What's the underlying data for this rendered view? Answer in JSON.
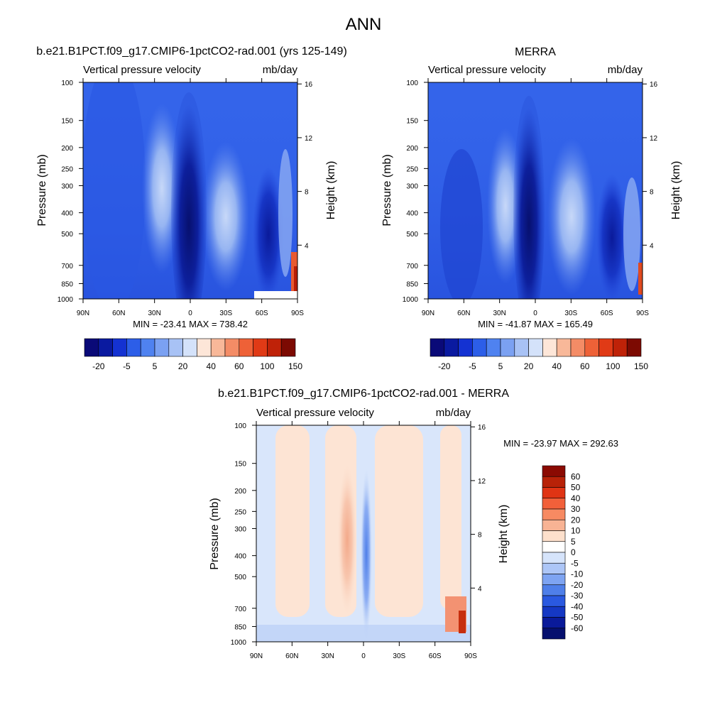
{
  "title": "ANN",
  "chart_data": [
    {
      "type": "heatmap",
      "title": "b.e21.B1PCT.f09_g17.CMIP6-1pctCO2-rad.001 (yrs 125-149)",
      "left_label": "Vertical pressure velocity",
      "right_label": "mb/day",
      "xlabel": "",
      "ylabel": "Pressure (mb)",
      "y2label": "Height (km)",
      "x_ticks": [
        "90N",
        "60N",
        "30N",
        "0",
        "30S",
        "60S",
        "90S"
      ],
      "y_ticks": [
        100,
        150,
        200,
        250,
        300,
        400,
        500,
        700,
        850,
        1000
      ],
      "y_log": true,
      "y_reversed": true,
      "ylim": [
        100,
        1000
      ],
      "y2_ticks": [
        16,
        12,
        8,
        4
      ],
      "stats": "MIN = -23.41  MAX = 738.42",
      "colorbar_labels": [
        "-20",
        "-5",
        "5",
        "20",
        "40",
        "60",
        "100",
        "150"
      ],
      "colorbar_colors": [
        "#0a0a78",
        "#0a1aa0",
        "#1432d2",
        "#2c5ee8",
        "#4f82f0",
        "#7ba1f2",
        "#a8c2f5",
        "#d4e2fa",
        "#fde6d8",
        "#f8b899",
        "#f48c66",
        "#ee6137",
        "#e03a16",
        "#bf2208",
        "#7c0a02"
      ],
      "fields": [
        {
          "lat_range": [
            -90,
            90
          ],
          "p_range": [
            100,
            1000
          ],
          "level": 4,
          "value": "-5 to 5"
        },
        {
          "lat_range": [
            -10,
            10
          ],
          "p_range": [
            150,
            1000
          ],
          "level": 1,
          "value": "-20 to -15"
        },
        {
          "lat_range": [
            -7,
            5
          ],
          "p_range": [
            400,
            1000
          ],
          "level": 0,
          "value": "< -20"
        },
        {
          "lat_range": [
            15,
            40
          ],
          "p_range": [
            150,
            900
          ],
          "level": 6,
          "value": "10 to 20"
        },
        {
          "lat_range": [
            -45,
            -20
          ],
          "p_range": [
            240,
            900
          ],
          "level": 6,
          "value": "10 to 20"
        },
        {
          "lat_range": [
            -75,
            -58
          ],
          "p_range": [
            300,
            1000
          ],
          "level": 1,
          "value": "-20 to -15"
        },
        {
          "lat_range": [
            -90,
            -80
          ],
          "p_range": [
            650,
            1000
          ],
          "level": 12,
          "value": "> 100"
        }
      ]
    },
    {
      "type": "heatmap",
      "title": "MERRA",
      "left_label": "Vertical pressure velocity",
      "right_label": "mb/day",
      "xlabel": "",
      "ylabel": "Pressure (mb)",
      "y2label": "Height (km)",
      "x_ticks": [
        "90N",
        "60N",
        "30N",
        "0",
        "30S",
        "60S",
        "90S"
      ],
      "y_ticks": [
        100,
        150,
        200,
        250,
        300,
        400,
        500,
        700,
        850,
        1000
      ],
      "y_log": true,
      "y_reversed": true,
      "ylim": [
        100,
        1000
      ],
      "y2_ticks": [
        16,
        12,
        8,
        4
      ],
      "stats": "MIN = -41.87  MAX = 165.49",
      "colorbar_labels": [
        "-20",
        "-5",
        "5",
        "20",
        "40",
        "60",
        "100",
        "150"
      ],
      "colorbar_colors": [
        "#0a0a78",
        "#0a1aa0",
        "#1432d2",
        "#2c5ee8",
        "#4f82f0",
        "#7ba1f2",
        "#a8c2f5",
        "#d4e2fa",
        "#fde6d8",
        "#f8b899",
        "#f48c66",
        "#ee6137",
        "#e03a16",
        "#bf2208",
        "#7c0a02"
      ],
      "fields": [
        {
          "lat_range": [
            -90,
            90
          ],
          "p_range": [
            100,
            1000
          ],
          "level": 4,
          "value": "-5 to 5"
        },
        {
          "lat_range": [
            -8,
            12
          ],
          "p_range": [
            150,
            1000
          ],
          "level": 1,
          "value": "-20 to -15"
        },
        {
          "lat_range": [
            -2,
            8
          ],
          "p_range": [
            500,
            1000
          ],
          "level": 0,
          "value": "< -20"
        },
        {
          "lat_range": [
            15,
            40
          ],
          "p_range": [
            200,
            900
          ],
          "level": 6,
          "value": "10 to 20"
        },
        {
          "lat_range": [
            -45,
            -20
          ],
          "p_range": [
            240,
            900
          ],
          "level": 6,
          "value": "10 to 20"
        },
        {
          "lat_range": [
            -75,
            -58
          ],
          "p_range": [
            300,
            1000
          ],
          "level": 1,
          "value": "-20 to -15"
        },
        {
          "lat_range": [
            -90,
            -80
          ],
          "p_range": [
            650,
            1000
          ],
          "level": 11,
          "value": "60 to 100"
        }
      ]
    },
    {
      "type": "heatmap",
      "title": "b.e21.B1PCT.f09_g17.CMIP6-1pctCO2-rad.001 - MERRA",
      "left_label": "Vertical pressure velocity",
      "right_label": "mb/day",
      "xlabel": "",
      "ylabel": "Pressure (mb)",
      "y2label": "Height (km)",
      "x_ticks": [
        "90N",
        "60N",
        "30N",
        "0",
        "30S",
        "60S",
        "90S"
      ],
      "y_ticks": [
        100,
        150,
        200,
        250,
        300,
        400,
        500,
        700,
        850,
        1000
      ],
      "y_log": true,
      "y_reversed": true,
      "ylim": [
        100,
        1000
      ],
      "y2_ticks": [
        16,
        12,
        8,
        4
      ],
      "stats": "MIN = -23.97  MAX = 292.63",
      "colorbar_labels": [
        "60",
        "50",
        "40",
        "30",
        "20",
        "10",
        "5",
        "0",
        "-5",
        "-10",
        "-20",
        "-30",
        "-40",
        "-50",
        "-60"
      ],
      "colorbar_colors": [
        "#8b0a02",
        "#b82208",
        "#e03414",
        "#f2603a",
        "#f78a62",
        "#f8b394",
        "#fde0cc",
        "#ffffff",
        "#d6e4fb",
        "#adc6f7",
        "#7ea4f2",
        "#4f7fe9",
        "#2a59e0",
        "#1538c4",
        "#0a1a9a",
        "#06106e"
      ],
      "fields": [
        {
          "lat_range": [
            -90,
            90
          ],
          "p_range": [
            100,
            1000
          ],
          "level": 8,
          "value": "-5 to 0"
        },
        {
          "lat_range": [
            45,
            75
          ],
          "p_range": [
            100,
            900
          ],
          "level": 6,
          "value": "0 to 5"
        },
        {
          "lat_range": [
            8,
            35
          ],
          "p_range": [
            100,
            900
          ],
          "level": 6,
          "value": "0 to 5"
        },
        {
          "lat_range": [
            -55,
            -8
          ],
          "p_range": [
            100,
            900
          ],
          "level": 6,
          "value": "0 to 5"
        },
        {
          "lat_range": [
            -85,
            -65
          ],
          "p_range": [
            100,
            900
          ],
          "level": 6,
          "value": "0 to 5"
        },
        {
          "lat_range": [
            10,
            25
          ],
          "p_range": [
            180,
            900
          ],
          "level": 5,
          "value": "5 to 10"
        },
        {
          "lat_range": [
            -3,
            3
          ],
          "p_range": [
            170,
            1000
          ],
          "level": 10,
          "value": "-20 to -10"
        },
        {
          "lat_range": [
            -90,
            -82
          ],
          "p_range": [
            650,
            1000
          ],
          "level": 3,
          "value": "20 to 30"
        }
      ]
    }
  ]
}
